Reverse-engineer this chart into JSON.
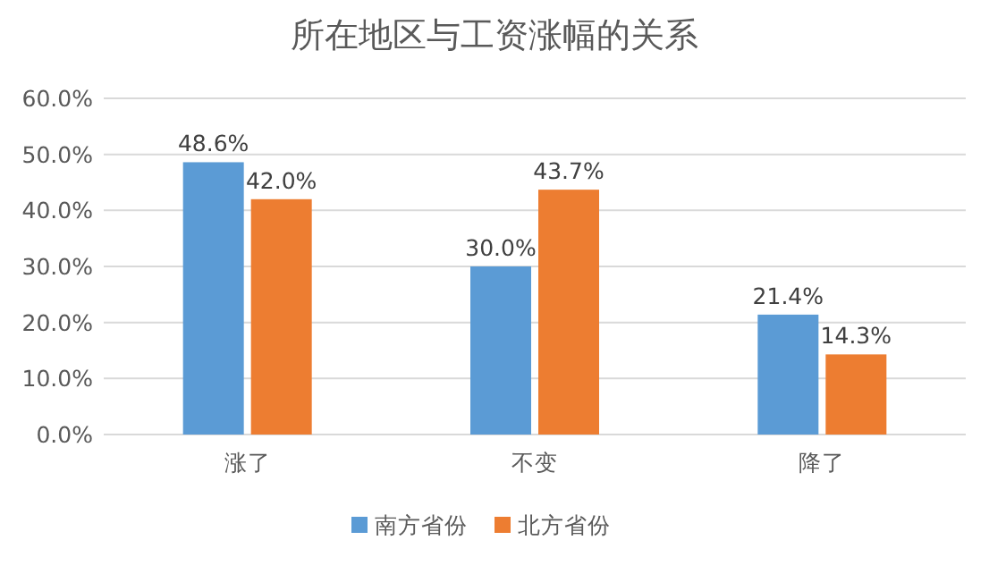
{
  "chart_data": {
    "type": "bar",
    "title": "所在地区与工资涨幅的关系",
    "categories": [
      "涨了",
      "不变",
      "降了"
    ],
    "series": [
      {
        "name": "南方省份",
        "color": "#5b9bd5",
        "values": [
          48.6,
          30.0,
          21.4
        ],
        "value_labels": [
          "48.6%",
          "30.0%",
          "21.4%"
        ]
      },
      {
        "name": "北方省份",
        "color": "#ed7d31",
        "values": [
          42.0,
          43.7,
          14.3
        ],
        "value_labels": [
          "42.0%",
          "43.7%",
          "14.3%"
        ]
      }
    ],
    "ylim": [
      0,
      60
    ],
    "yticks": [
      {
        "value": 0,
        "label": "0.0%"
      },
      {
        "value": 10,
        "label": "10.0%"
      },
      {
        "value": 20,
        "label": "20.0%"
      },
      {
        "value": 30,
        "label": "30.0%"
      },
      {
        "value": 40,
        "label": "40.0%"
      },
      {
        "value": 50,
        "label": "50.0%"
      },
      {
        "value": 60,
        "label": "60.0%"
      }
    ],
    "grid": "y",
    "legend": "bottom"
  }
}
